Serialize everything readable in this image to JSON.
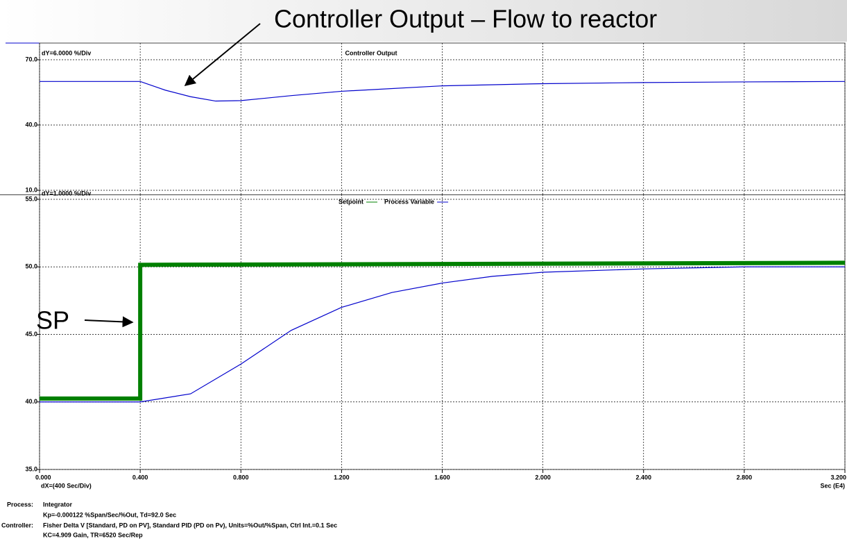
{
  "annotations": {
    "top": "Controller Output – Flow to reactor",
    "sp": "SP"
  },
  "chart_data": [
    {
      "type": "line",
      "title": "Controller Output",
      "subtitle": "dY=6.0000 %/Div",
      "x": [
        0,
        0.4,
        0.5,
        0.6,
        0.7,
        0.8,
        1.0,
        1.2,
        1.6,
        2.0,
        2.4,
        2.8,
        3.2
      ],
      "series": [
        {
          "name": "Controller Output",
          "color": "#0000cc",
          "values": [
            60,
            60,
            56,
            53,
            51,
            51.2,
            53.5,
            55.5,
            58,
            59,
            59.5,
            59.8,
            60
          ]
        }
      ],
      "ylim": [
        10,
        70
      ],
      "yticks": [
        {
          "value": 10,
          "label": "10.0"
        },
        {
          "value": 40,
          "label": "40.0"
        },
        {
          "value": 70,
          "label": "70.0"
        }
      ],
      "grid": true
    },
    {
      "type": "line",
      "subtitle": "dY=1.0000 %/Div",
      "xlabel": "dX=(400 Sec/Div)",
      "xunit": "Sec (E4)",
      "x": [
        0,
        0.4,
        0.6,
        0.8,
        1.0,
        1.2,
        1.4,
        1.6,
        1.8,
        2.0,
        2.4,
        2.8,
        3.2
      ],
      "series": [
        {
          "name": "Setpoint",
          "color": "#008000",
          "x": [
            0,
            0.4,
            0.4,
            3.2
          ],
          "values": [
            40.25,
            40.25,
            50.15,
            50.3
          ]
        },
        {
          "name": "Process Variable",
          "color": "#0000cc",
          "values": [
            40,
            40,
            40.6,
            42.8,
            45.3,
            47.0,
            48.1,
            48.8,
            49.3,
            49.6,
            49.85,
            50.0,
            50.0
          ]
        }
      ],
      "xlim": [
        0,
        3.2
      ],
      "xticks": [
        {
          "value": 0,
          "label": "0.000"
        },
        {
          "value": 0.4,
          "label": "0.400"
        },
        {
          "value": 0.8,
          "label": "0.800"
        },
        {
          "value": 1.2,
          "label": "1.200"
        },
        {
          "value": 1.6,
          "label": "1.600"
        },
        {
          "value": 2.0,
          "label": "2.000"
        },
        {
          "value": 2.4,
          "label": "2.400"
        },
        {
          "value": 2.8,
          "label": "2.800"
        },
        {
          "value": 3.2,
          "label": "3.200"
        }
      ],
      "ylim": [
        35,
        55
      ],
      "yticks": [
        {
          "value": 35,
          "label": "35.0"
        },
        {
          "value": 40,
          "label": "40.0"
        },
        {
          "value": 45,
          "label": "45.0"
        },
        {
          "value": 50,
          "label": "50.0"
        },
        {
          "value": 55,
          "label": "55.0"
        }
      ],
      "grid": true
    }
  ],
  "footer": {
    "process_label": "Process:",
    "process_1": "Integrator",
    "process_2": "Kp=-0.000122 %Span/Sec/%Out, Td=92.0 Sec",
    "controller_label": "Controller:",
    "controller_1": "Fisher Delta V [Standard, PD on PV],  Standard PID (PD on Pv), Units=%Out/%Span, Ctrl Int.=0.1 Sec",
    "controller_2": "KC=4.909 Gain, TR=6520 Sec/Rep"
  }
}
